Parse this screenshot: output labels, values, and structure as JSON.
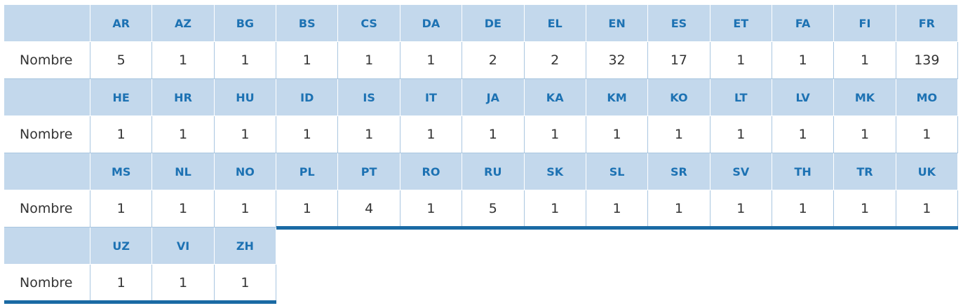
{
  "table": {
    "blocks": [
      {
        "row_label": "Nombre",
        "languages": [
          "AR",
          "AZ",
          "BG",
          "BS",
          "CS",
          "DA",
          "DE",
          "EL",
          "EN",
          "ES",
          "ET",
          "FA",
          "FI",
          "FR"
        ],
        "counts": [
          5,
          1,
          1,
          1,
          1,
          1,
          2,
          2,
          32,
          17,
          1,
          1,
          1,
          139
        ]
      },
      {
        "row_label": "Nombre",
        "languages": [
          "HE",
          "HR",
          "HU",
          "ID",
          "IS",
          "IT",
          "JA",
          "KA",
          "KM",
          "KO",
          "LT",
          "LV",
          "MK",
          "MO"
        ],
        "counts": [
          1,
          1,
          1,
          1,
          1,
          1,
          1,
          1,
          1,
          1,
          1,
          1,
          1,
          1
        ]
      },
      {
        "row_label": "Nombre",
        "languages": [
          "MS",
          "NL",
          "NO",
          "PL",
          "PT",
          "RO",
          "RU",
          "SK",
          "SL",
          "SR",
          "SV",
          "TH",
          "TR",
          "UK"
        ],
        "counts": [
          1,
          1,
          1,
          1,
          4,
          1,
          5,
          1,
          1,
          1,
          1,
          1,
          1,
          1
        ]
      },
      {
        "row_label": "Nombre",
        "languages": [
          "UZ",
          "VI",
          "ZH"
        ],
        "counts": [
          1,
          1,
          1
        ]
      }
    ]
  }
}
